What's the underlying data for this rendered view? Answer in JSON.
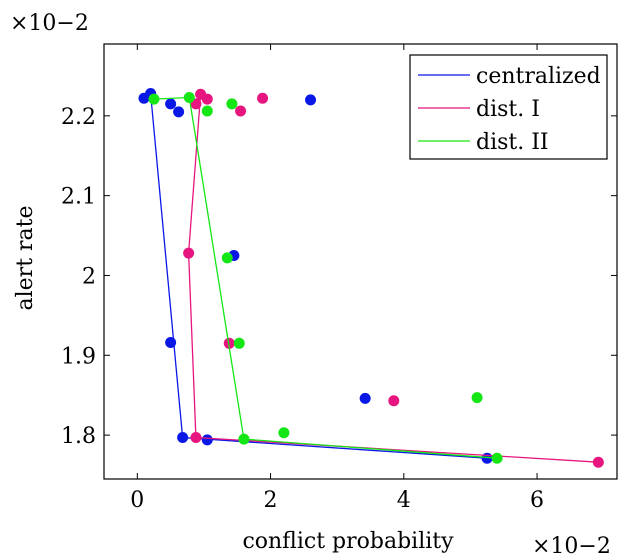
{
  "chart_data": {
    "type": "scatter",
    "title": "",
    "xlabel": "conflict probability",
    "ylabel": "alert rate",
    "x_multiplier": "×10−2",
    "y_multiplier": "×10−2",
    "xlim": [
      -0.5,
      7.2
    ],
    "ylim": [
      1.745,
      2.29
    ],
    "xticks": [
      0,
      2,
      4,
      6
    ],
    "xtick_labels": [
      "0",
      "2",
      "4",
      "6"
    ],
    "yticks": [
      1.8,
      1.9,
      2.0,
      2.1,
      2.2
    ],
    "ytick_labels": [
      "1.8",
      "1.9",
      "2",
      "2.1",
      "2.2"
    ],
    "legend_position": "top-right",
    "grid": false,
    "series": [
      {
        "name": "centralized",
        "color": "#0a18e6",
        "points": [
          [
            0.1,
            2.222
          ],
          [
            0.2,
            2.228
          ],
          [
            0.5,
            2.215
          ],
          [
            0.62,
            2.205
          ],
          [
            2.6,
            2.22
          ],
          [
            1.45,
            2.025
          ],
          [
            0.5,
            1.916
          ],
          [
            3.42,
            1.846
          ],
          [
            0.68,
            1.797
          ],
          [
            1.05,
            1.794
          ],
          [
            5.25,
            1.771
          ]
        ],
        "frontier": [
          [
            0.2,
            2.228
          ],
          [
            0.68,
            1.797
          ],
          [
            5.25,
            1.771
          ]
        ]
      },
      {
        "name": "dist. I",
        "color": "#e6157f",
        "points": [
          [
            0.95,
            2.227
          ],
          [
            0.88,
            2.215
          ],
          [
            1.05,
            2.221
          ],
          [
            1.55,
            2.206
          ],
          [
            1.88,
            2.222
          ],
          [
            0.77,
            2.028
          ],
          [
            1.38,
            1.915
          ],
          [
            3.85,
            1.843
          ],
          [
            0.88,
            1.797
          ],
          [
            6.92,
            1.766
          ]
        ],
        "frontier": [
          [
            0.95,
            2.227
          ],
          [
            0.77,
            2.028
          ],
          [
            0.88,
            1.797
          ],
          [
            6.92,
            1.766
          ]
        ]
      },
      {
        "name": "dist. II",
        "color": "#15e615",
        "points": [
          [
            0.25,
            2.221
          ],
          [
            0.78,
            2.223
          ],
          [
            1.42,
            2.215
          ],
          [
            1.05,
            2.206
          ],
          [
            1.35,
            2.022
          ],
          [
            1.53,
            1.915
          ],
          [
            5.1,
            1.847
          ],
          [
            2.2,
            1.803
          ],
          [
            1.6,
            1.795
          ],
          [
            5.4,
            1.771
          ]
        ],
        "frontier": [
          [
            0.25,
            2.221
          ],
          [
            0.78,
            2.223
          ],
          [
            1.6,
            1.795
          ],
          [
            5.4,
            1.771
          ]
        ]
      }
    ]
  }
}
